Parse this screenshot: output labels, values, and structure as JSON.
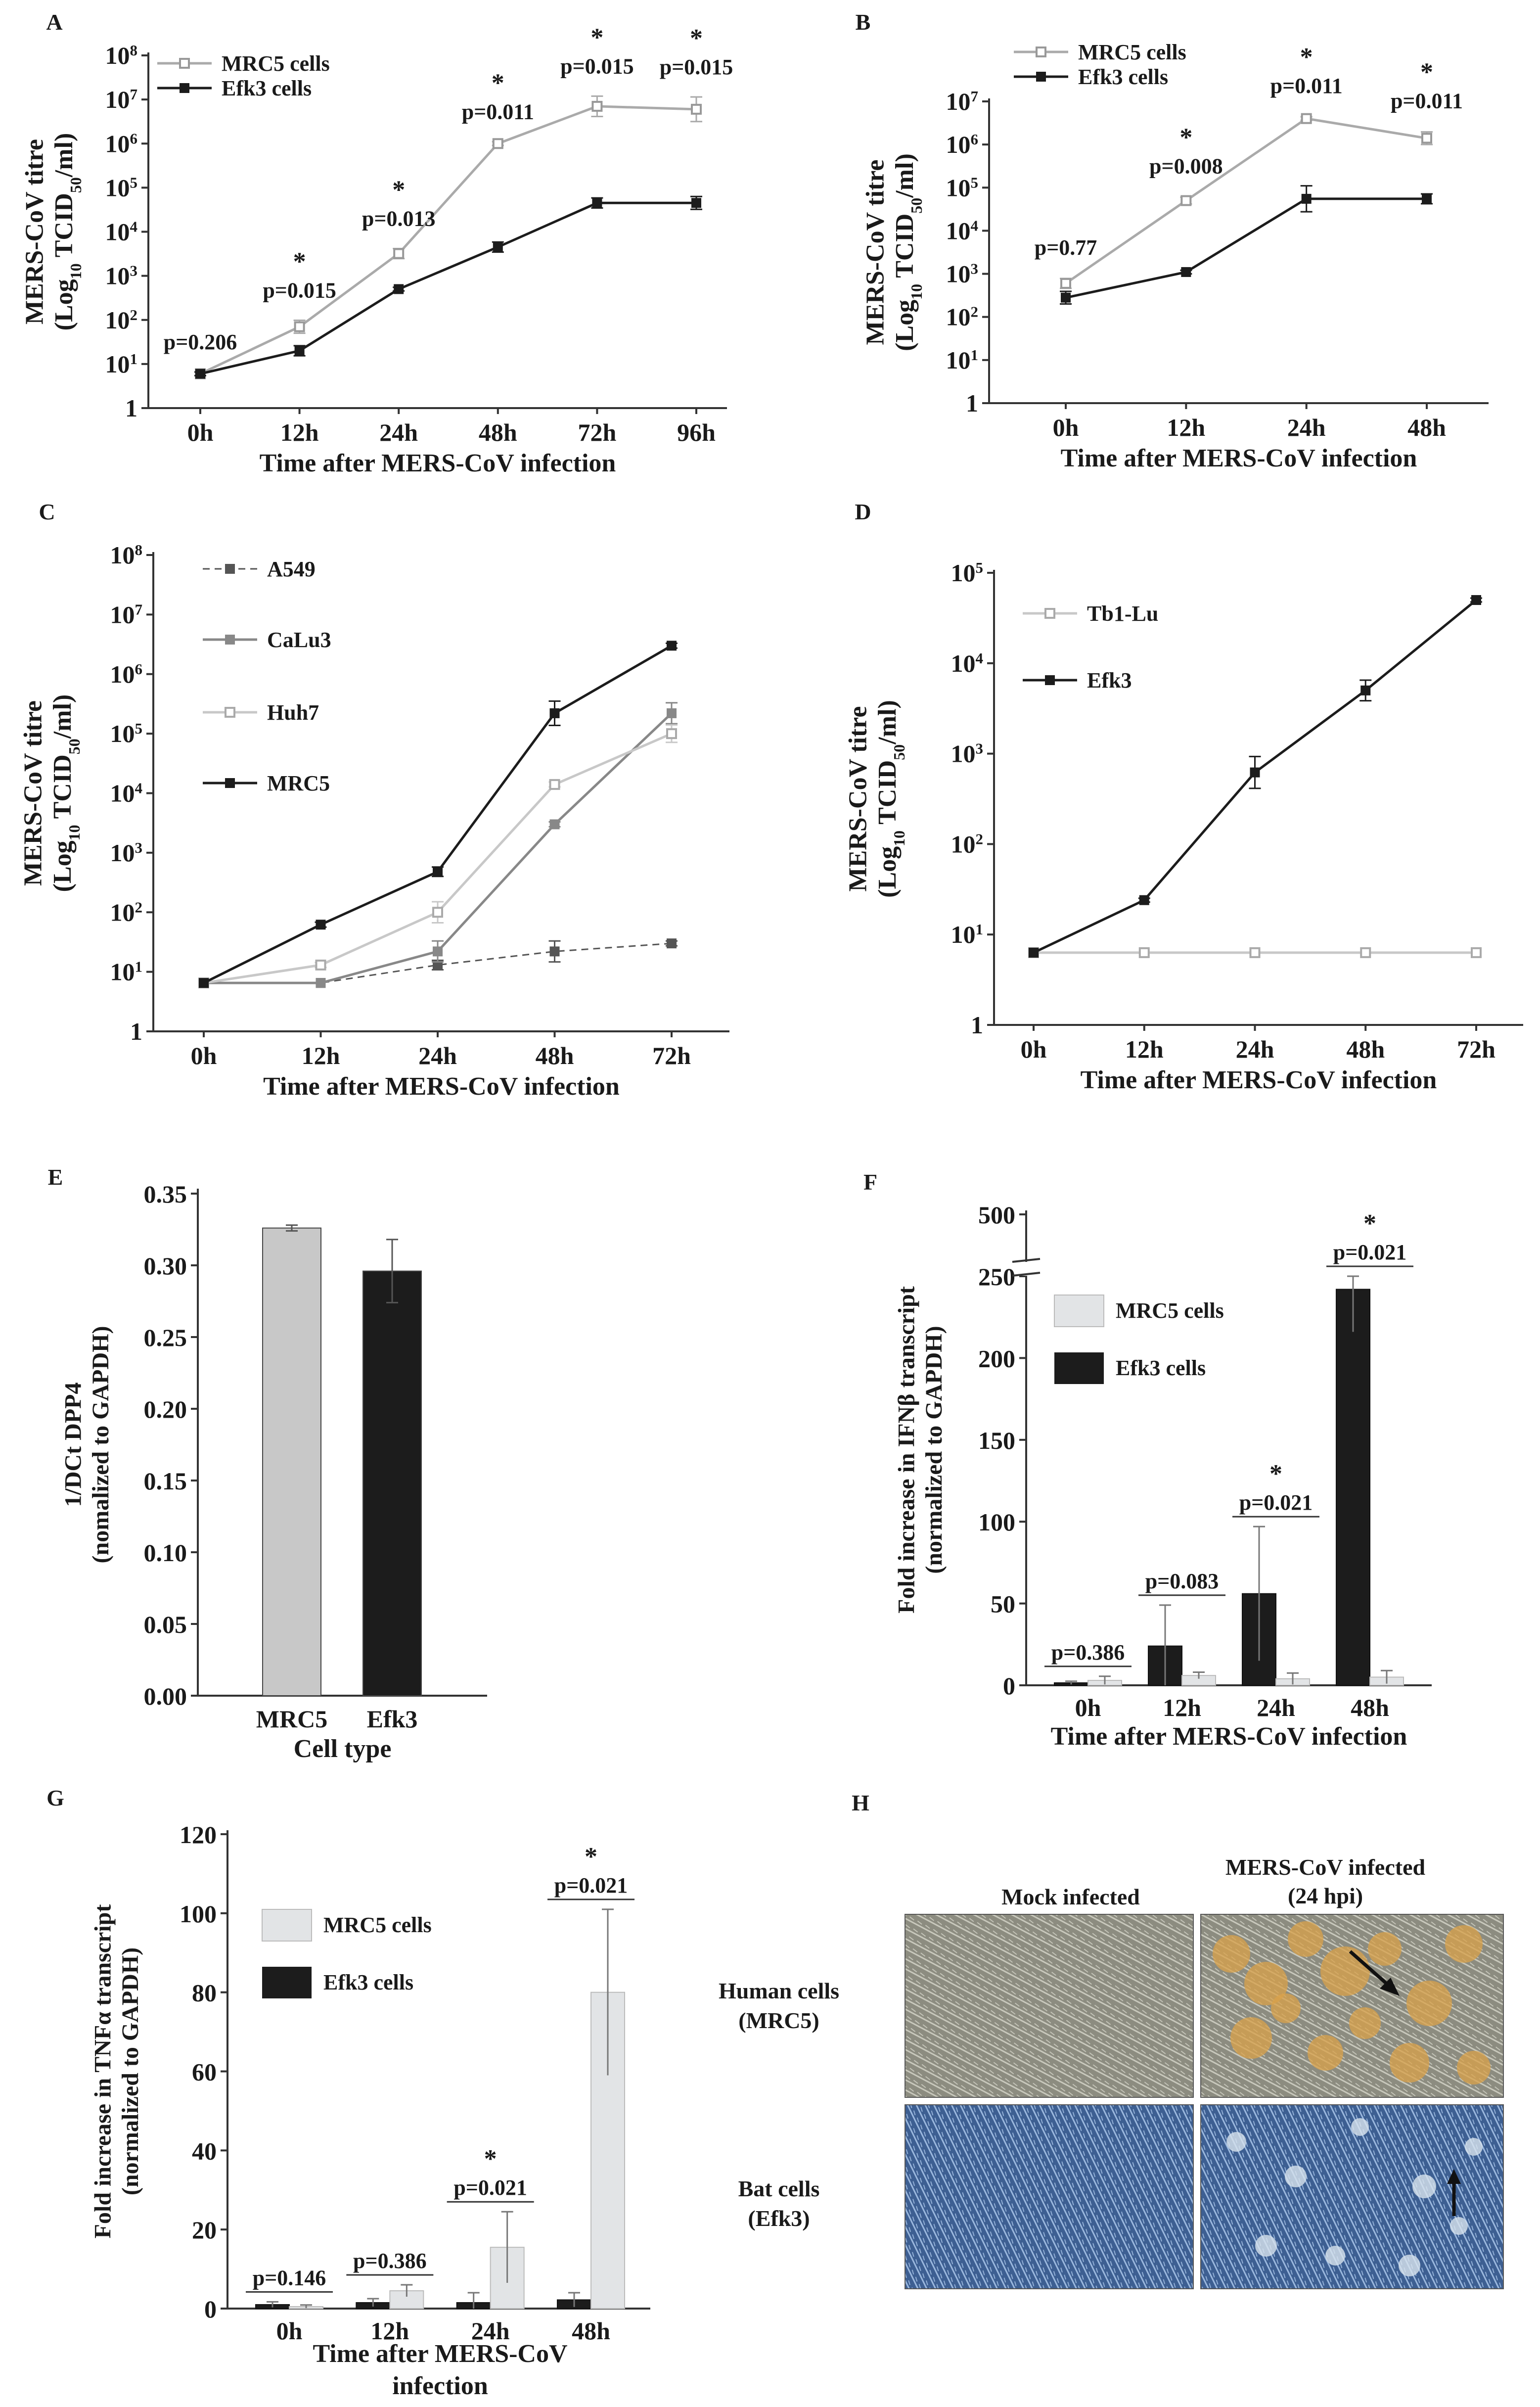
{
  "colors": {
    "mrc5_line": "#aaaaaa",
    "efk3_line": "#1c1c1c",
    "mrc5_bar_e": "#c8c8c8",
    "mrc5_bar_fg": "#e2e4e6",
    "efk3_bar": "#1c1c1c",
    "a549": "#555555",
    "calu3": "#888888",
    "huh7": "#c8c8c8",
    "tb1lu": "#c8c8c8",
    "cell_phase": "#8a8a7a",
    "cell_infected": "#d9a24a",
    "cell_stain": "#5b7fb0"
  },
  "chart_data": [
    {
      "panel": "A",
      "type": "line",
      "yscale": "log",
      "ylabel": "MERS-CoV titre (Log10 TCID50/ml)",
      "xlabel": "Time after MERS-CoV infection",
      "categories": [
        "0h",
        "12h",
        "24h",
        "48h",
        "72h",
        "96h"
      ],
      "yticks": [
        "1",
        "10^1",
        "10^2",
        "10^3",
        "10^4",
        "10^5",
        "10^6",
        "10^7",
        "10^8"
      ],
      "ylim": [
        1,
        100000000
      ],
      "series": [
        {
          "name": "MRC5 cells",
          "values": [
            6,
            70,
            3200,
            1000000,
            7000000,
            6000000
          ],
          "err_factor": [
            1.1,
            1.4,
            1.3,
            1.1,
            1.7,
            1.9
          ]
        },
        {
          "name": "Efk3 cells",
          "values": [
            6,
            20,
            500,
            4500,
            45000,
            45000
          ],
          "err_factor": [
            1.1,
            1.3,
            1.1,
            1.3,
            1.3,
            1.4
          ]
        }
      ],
      "pvalues": [
        "p=0.206",
        "p=0.015",
        "p=0.013",
        "p=0.011",
        "p=0.015",
        "p=0.015"
      ],
      "significant": [
        false,
        true,
        true,
        true,
        true,
        true
      ]
    },
    {
      "panel": "B",
      "type": "line",
      "yscale": "log",
      "ylabel": "MERS-CoV titre (Log10 TCID50/ml)",
      "xlabel": "Time after MERS-CoV infection",
      "categories": [
        "0h",
        "12h",
        "24h",
        "48h"
      ],
      "yticks": [
        "1",
        "10^1",
        "10^2",
        "10^3",
        "10^4",
        "10^5",
        "10^6",
        "10^7"
      ],
      "ylim": [
        1,
        10000000
      ],
      "series": [
        {
          "name": "MRC5 cells",
          "values": [
            600,
            50000,
            4000000,
            1400000
          ],
          "err_factor": [
            1.3,
            1.2,
            1.1,
            1.4
          ]
        },
        {
          "name": "Efk3 cells",
          "values": [
            280,
            1100,
            55000,
            55000
          ],
          "err_factor": [
            1.4,
            1.1,
            2.0,
            1.3
          ]
        }
      ],
      "pvalues": [
        "p=0.77",
        "p=0.008",
        "p=0.011",
        "p=0.011"
      ],
      "significant": [
        false,
        true,
        true,
        true
      ]
    },
    {
      "panel": "C",
      "type": "line",
      "yscale": "log",
      "ylabel": "MERS-CoV titre (Log10 TCID50/ml)",
      "xlabel": "Time after MERS-CoV infection",
      "categories": [
        "0h",
        "12h",
        "24h",
        "48h",
        "72h"
      ],
      "yticks": [
        "1",
        "10^1",
        "10^2",
        "10^3",
        "10^4",
        "10^5",
        "10^6",
        "10^7",
        "10^8"
      ],
      "ylim": [
        1,
        100000000
      ],
      "series": [
        {
          "name": "A549",
          "values": [
            6.5,
            6.5,
            13,
            22,
            30
          ],
          "err_factor": [
            1,
            1,
            1.2,
            1.5,
            1.1
          ]
        },
        {
          "name": "CaLu3",
          "values": [
            6.5,
            6.5,
            22,
            3000,
            220000
          ],
          "err_factor": [
            1,
            1,
            1.5,
            1.1,
            1.5
          ]
        },
        {
          "name": "Huh7",
          "values": [
            6.5,
            13,
            100,
            14000,
            100000
          ],
          "err_factor": [
            1,
            1.1,
            1.5,
            1.1,
            1.4
          ]
        },
        {
          "name": "MRC5",
          "values": [
            6.5,
            62,
            480,
            220000,
            3000000
          ],
          "err_factor": [
            1,
            1.1,
            1.2,
            1.6,
            1.1
          ]
        }
      ]
    },
    {
      "panel": "D",
      "type": "line",
      "yscale": "log",
      "ylabel": "MERS-CoV titre (Log10 TCID50/ml)",
      "xlabel": "Time after MERS-CoV infection",
      "categories": [
        "0h",
        "12h",
        "24h",
        "48h",
        "72h"
      ],
      "yticks": [
        "1",
        "10^1",
        "10^2",
        "10^3",
        "10^4",
        "10^5"
      ],
      "ylim": [
        1,
        100000
      ],
      "series": [
        {
          "name": "Tb1-Lu",
          "values": [
            6.3,
            6.3,
            6.3,
            6.3,
            6.3
          ],
          "err_factor": [
            1,
            1,
            1,
            1,
            1
          ]
        },
        {
          "name": "Efk3",
          "values": [
            6.3,
            24,
            620,
            5000,
            50000
          ],
          "err_factor": [
            1,
            1.05,
            1.5,
            1.3,
            1.05
          ]
        }
      ]
    },
    {
      "panel": "E",
      "type": "bar",
      "ylabel": "1/DCt DPP4 (nomalized to GAPDH)",
      "xlabel": "Cell type",
      "categories": [
        "MRC5",
        "Efk3"
      ],
      "values": [
        0.326,
        0.296
      ],
      "errors": [
        0.002,
        0.022
      ],
      "yticks": [
        "0.00",
        "0.05",
        "0.10",
        "0.15",
        "0.20",
        "0.25",
        "0.30",
        "0.35"
      ],
      "ylim": [
        0,
        0.35
      ]
    },
    {
      "panel": "F",
      "type": "bar",
      "axis_break": true,
      "ylabel": "Fold increase in IFNβ transcript (normalized to GAPDH)",
      "xlabel": "Time after MERS-CoV infection",
      "categories": [
        "0h",
        "12h",
        "24h",
        "48h"
      ],
      "yticks": [
        "0",
        "50",
        "100",
        "150",
        "200",
        "250",
        "500"
      ],
      "ylim": [
        0,
        500
      ],
      "series": [
        {
          "name": "Efk3 cells",
          "values": [
            1.5,
            24,
            56,
            242
          ],
          "errors": [
            1,
            25,
            41,
            26
          ]
        },
        {
          "name": "MRC5 cells",
          "values": [
            3,
            6,
            4,
            5
          ],
          "errors": [
            2.5,
            2,
            3.5,
            4
          ]
        }
      ],
      "pvalues": [
        "p=0.386",
        "p=0.083",
        "p=0.021",
        "p=0.021"
      ],
      "significant": [
        false,
        false,
        true,
        true
      ]
    },
    {
      "panel": "G",
      "type": "bar",
      "ylabel": "Fold increase in TNFα transcript (normalized to GAPDH)",
      "xlabel": "Time after MERS-CoV infection",
      "categories": [
        "0h",
        "12h",
        "24h",
        "48h"
      ],
      "yticks": [
        "0",
        "20",
        "40",
        "60",
        "80",
        "100",
        "120"
      ],
      "ylim": [
        0,
        120
      ],
      "series": [
        {
          "name": "Efk3 cells",
          "values": [
            1,
            1.5,
            1.5,
            2.2
          ],
          "errors": [
            0.7,
            1,
            2.5,
            1.8
          ]
        },
        {
          "name": "MRC5 cells",
          "values": [
            0.5,
            4.5,
            15.5,
            80
          ],
          "errors": [
            0.4,
            1.5,
            9,
            21
          ]
        }
      ],
      "pvalues": [
        "p=0.146",
        "p=0.386",
        "p=0.021",
        "p=0.021"
      ],
      "significant": [
        false,
        false,
        true,
        true
      ]
    }
  ],
  "panel_h": {
    "panel": "H",
    "col_headers": [
      "Mock infected",
      "MERS-CoV infected\n(24 hpi)"
    ],
    "row_headers": [
      "Human cells\n(MRC5)",
      "Bat cells\n(Efk3)"
    ]
  }
}
